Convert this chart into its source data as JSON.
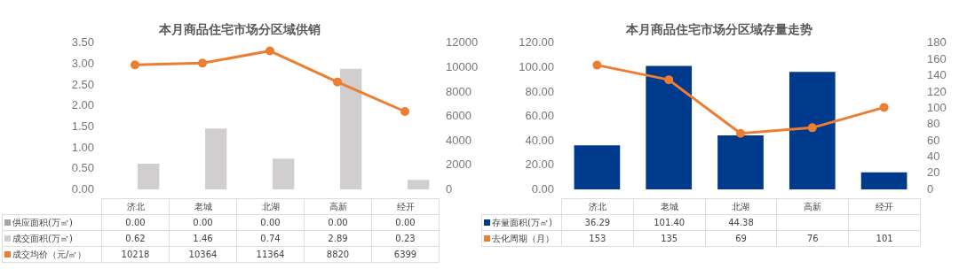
{
  "chart_data": [
    {
      "type": "bar",
      "title": "本月商品住宅市场分区域供销",
      "categories": [
        "济北",
        "老城",
        "北湖",
        "高新",
        "经开"
      ],
      "series": [
        {
          "name": "供应面积(万㎡)",
          "color": "#a5a5a5",
          "values": [
            0,
            0,
            0,
            0,
            0
          ],
          "value_labels": [
            "0.00",
            "0.00",
            "0.00",
            "0.00",
            "0.00"
          ]
        },
        {
          "name": "成交面积(万㎡)",
          "color": "#d0cece",
          "values": [
            0.62,
            1.46,
            0.74,
            2.89,
            0.23
          ],
          "value_labels": [
            "0.62",
            "1.46",
            "0.74",
            "2.89",
            "0.23"
          ]
        },
        {
          "name": "成交均价（元/㎡）",
          "type": "line",
          "axis": "y2",
          "color": "#ed7d31",
          "values": [
            10218,
            10364,
            11364,
            8820,
            6399
          ],
          "value_labels": [
            "10218",
            "10364",
            "11364",
            "8820",
            "6399"
          ]
        }
      ],
      "ylim": [
        0,
        3.5
      ],
      "yticks": [
        {
          "value": 0,
          "label": "0.00"
        },
        {
          "value": 0.5,
          "label": "0.50"
        },
        {
          "value": 1,
          "label": "1.00"
        },
        {
          "value": 1.5,
          "label": "1.50"
        },
        {
          "value": 2,
          "label": "2.00"
        },
        {
          "value": 2.5,
          "label": "2.50"
        },
        {
          "value": 3,
          "label": "3.00"
        },
        {
          "value": 3.5,
          "label": "3.50"
        }
      ],
      "y2lim": [
        0,
        12000
      ],
      "y2ticks": [
        0,
        2000,
        4000,
        6000,
        8000,
        10000,
        12000
      ],
      "grid": false,
      "legend": "bottom",
      "marker": "circle"
    },
    {
      "type": "bar",
      "title": "本月商品住宅市场分区域存量走势",
      "categories": [
        "济北",
        "老城",
        "北湖",
        "高新",
        "经开"
      ],
      "series": [
        {
          "name": "存量面积(万㎡)",
          "color": "#003a8c",
          "values": [
            36.29,
            101.4,
            44.38,
            96.4,
            14.1
          ],
          "value_labels": [
            "36.29",
            "101.40",
            "44.38",
            null,
            null
          ]
        },
        {
          "name": "去化周期（月）",
          "type": "line",
          "axis": "y2",
          "color": "#ed7d31",
          "values": [
            153,
            135,
            69,
            76,
            101
          ],
          "value_labels": [
            "153",
            "135",
            "69",
            "76",
            "101"
          ]
        }
      ],
      "ylim": [
        0,
        120
      ],
      "yticks": [
        {
          "value": 0,
          "label": "0.00"
        },
        {
          "value": 20,
          "label": "20.00"
        },
        {
          "value": 40,
          "label": "40.00"
        },
        {
          "value": 60,
          "label": "60.00"
        },
        {
          "value": 80,
          "label": "80.00"
        },
        {
          "value": 100,
          "label": "100.00"
        },
        {
          "value": 120,
          "label": "120.00"
        }
      ],
      "y2lim": [
        0,
        180
      ],
      "y2ticks": [
        0,
        20,
        40,
        60,
        80,
        100,
        120,
        140,
        160,
        180
      ],
      "grid": false,
      "legend": "bottom",
      "marker": "circle"
    }
  ]
}
